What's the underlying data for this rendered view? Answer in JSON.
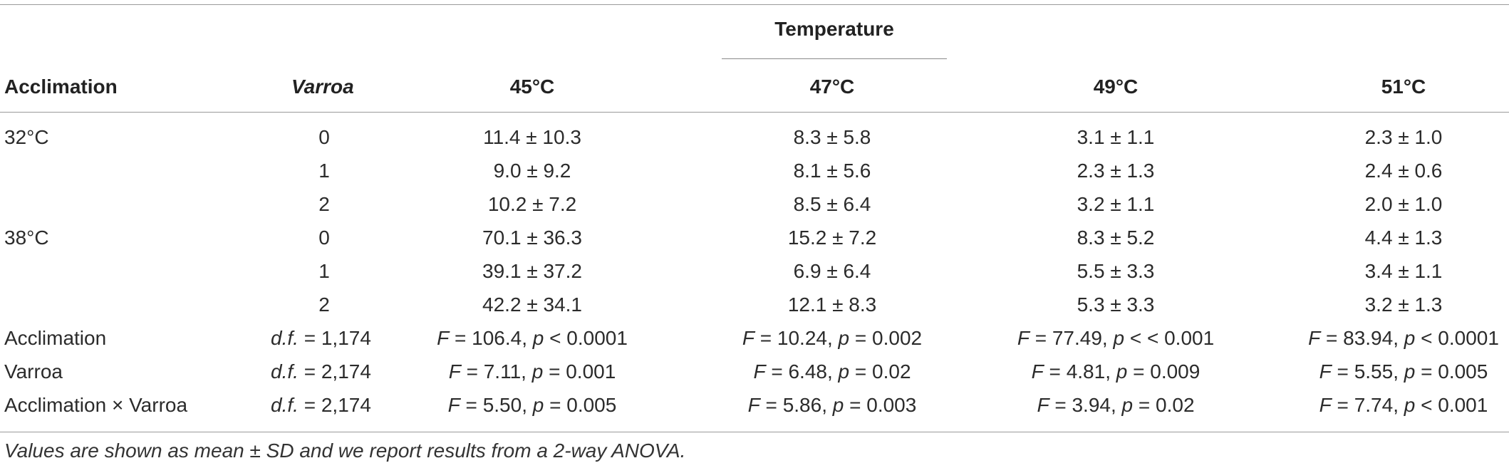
{
  "table": {
    "header": {
      "group_label": "Temperature",
      "acclimation": "Acclimation",
      "varroa": "Varroa",
      "temps": [
        "45°C",
        "47°C",
        "49°C",
        "51°C"
      ]
    },
    "rows": [
      {
        "acclimation": "32°C",
        "varroa": "0",
        "values": [
          "11.4 ± 10.3",
          "8.3 ± 5.8",
          "3.1 ± 1.1",
          "2.3 ± 1.0"
        ]
      },
      {
        "acclimation": "",
        "varroa": "1",
        "values": [
          "9.0 ± 9.2",
          "8.1 ± 5.6",
          "2.3 ± 1.3",
          "2.4 ± 0.6"
        ]
      },
      {
        "acclimation": "",
        "varroa": "2",
        "values": [
          "10.2 ± 7.2",
          "8.5 ± 6.4",
          "3.2 ± 1.1",
          "2.0 ± 1.0"
        ]
      },
      {
        "acclimation": "38°C",
        "varroa": "0",
        "values": [
          "70.1 ± 36.3",
          "15.2 ± 7.2",
          "8.3 ± 5.2",
          "4.4 ± 1.3"
        ]
      },
      {
        "acclimation": "",
        "varroa": "1",
        "values": [
          "39.1 ± 37.2",
          "6.9 ± 6.4",
          "5.5 ± 3.3",
          "3.4 ± 1.1"
        ]
      },
      {
        "acclimation": "",
        "varroa": "2",
        "values": [
          "42.2 ± 34.1",
          "12.1 ± 8.3",
          "5.3 ± 3.3",
          "3.2 ± 1.3"
        ]
      }
    ],
    "stats": [
      {
        "label": "Acclimation",
        "df": "1,174",
        "tests": [
          {
            "F": "106.4",
            "rel": "<",
            "p": "0.0001"
          },
          {
            "F": "10.24",
            "rel": "=",
            "p": "0.002"
          },
          {
            "F": "77.49",
            "rel": "< <",
            "p": "0.001"
          },
          {
            "F": "83.94",
            "rel": "<",
            "p": "0.0001"
          }
        ]
      },
      {
        "label": "Varroa",
        "df": "2,174",
        "tests": [
          {
            "F": "7.11",
            "rel": "=",
            "p": "0.001"
          },
          {
            "F": "6.48",
            "rel": "=",
            "p": "0.02"
          },
          {
            "F": "4.81",
            "rel": "=",
            "p": "0.009"
          },
          {
            "F": "5.55",
            "rel": "=",
            "p": "0.005"
          }
        ]
      },
      {
        "label": "Acclimation × Varroa",
        "df": "2,174",
        "tests": [
          {
            "F": "5.50",
            "rel": "=",
            "p": "0.005"
          },
          {
            "F": "5.86",
            "rel": "=",
            "p": "0.003"
          },
          {
            "F": "3.94",
            "rel": "=",
            "p": "0.02"
          },
          {
            "F": "7.74",
            "rel": "<",
            "p": "0.001"
          }
        ]
      }
    ],
    "df_label": "d.f.",
    "f_symbol": "F",
    "p_symbol": "p",
    "footnote": "Values are shown as mean ± SD and we report results from a 2-way ANOVA."
  }
}
